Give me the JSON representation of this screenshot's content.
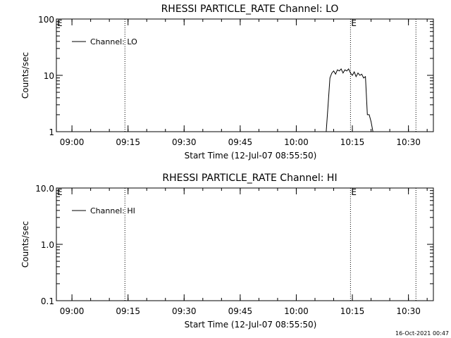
{
  "chart_data": [
    {
      "type": "line",
      "title": "RHESSI PARTICLE_RATE Channel: LO",
      "xlabel": "Start Time (12-Jul-07 08:55:50)",
      "ylabel": "Counts/sec",
      "yscale": "log",
      "ylim": [
        1,
        100
      ],
      "xlim": [
        "08:55:50",
        "10:36:40"
      ],
      "yticks": [
        "1",
        "10",
        "100"
      ],
      "xticks": [
        "09:00",
        "09:15",
        "09:30",
        "09:45",
        "10:00",
        "10:15",
        "10:30"
      ],
      "grid": false,
      "legend_position": "top-left",
      "markers": {
        "vertical_lines": [
          "09:14:10",
          "10:14:30",
          "10:32:00"
        ],
        "labels": [
          {
            "time": "08:55:50",
            "text": "E"
          },
          {
            "time": "10:14:30",
            "text": "E"
          }
        ]
      },
      "series": [
        {
          "name": "Channel: LO",
          "x": [
            "10:08:00",
            "10:08:30",
            "10:09:00",
            "10:09:30",
            "10:10:00",
            "10:10:30",
            "10:11:00",
            "10:11:30",
            "10:12:00",
            "10:12:30",
            "10:13:00",
            "10:13:30",
            "10:14:00",
            "10:14:30",
            "10:15:00",
            "10:15:30",
            "10:16:00",
            "10:16:30",
            "10:17:00",
            "10:17:30",
            "10:18:00",
            "10:18:30",
            "10:19:00",
            "10:19:30",
            "10:20:00",
            "10:20:30",
            "10:21:00"
          ],
          "values": [
            1,
            3,
            9,
            11,
            12,
            10.5,
            12.5,
            12,
            13,
            11,
            12.5,
            12,
            13,
            11,
            10,
            11.5,
            9.5,
            11,
            10,
            10.5,
            9,
            9.5,
            2,
            2,
            1.5,
            1,
            1
          ]
        }
      ]
    },
    {
      "type": "line",
      "title": "RHESSI PARTICLE_RATE Channel: HI",
      "xlabel": "Start Time (12-Jul-07 08:55:50)",
      "ylabel": "Counts/sec",
      "yscale": "log",
      "ylim": [
        0.1,
        10
      ],
      "xlim": [
        "08:55:50",
        "10:36:40"
      ],
      "yticks": [
        "0.1",
        "1.0",
        "10.0"
      ],
      "xticks": [
        "09:00",
        "09:15",
        "09:30",
        "09:45",
        "10:00",
        "10:15",
        "10:30"
      ],
      "grid": false,
      "legend_position": "top-left",
      "markers": {
        "vertical_lines": [
          "09:14:10",
          "10:14:30",
          "10:32:00"
        ],
        "labels": [
          {
            "time": "08:55:50",
            "text": "E"
          },
          {
            "time": "10:14:30",
            "text": "E"
          }
        ]
      },
      "series": [
        {
          "name": "Channel: HI",
          "x": [],
          "values": []
        }
      ]
    }
  ],
  "footer": {
    "timestamp": "16-Oct-2021 00:47"
  }
}
